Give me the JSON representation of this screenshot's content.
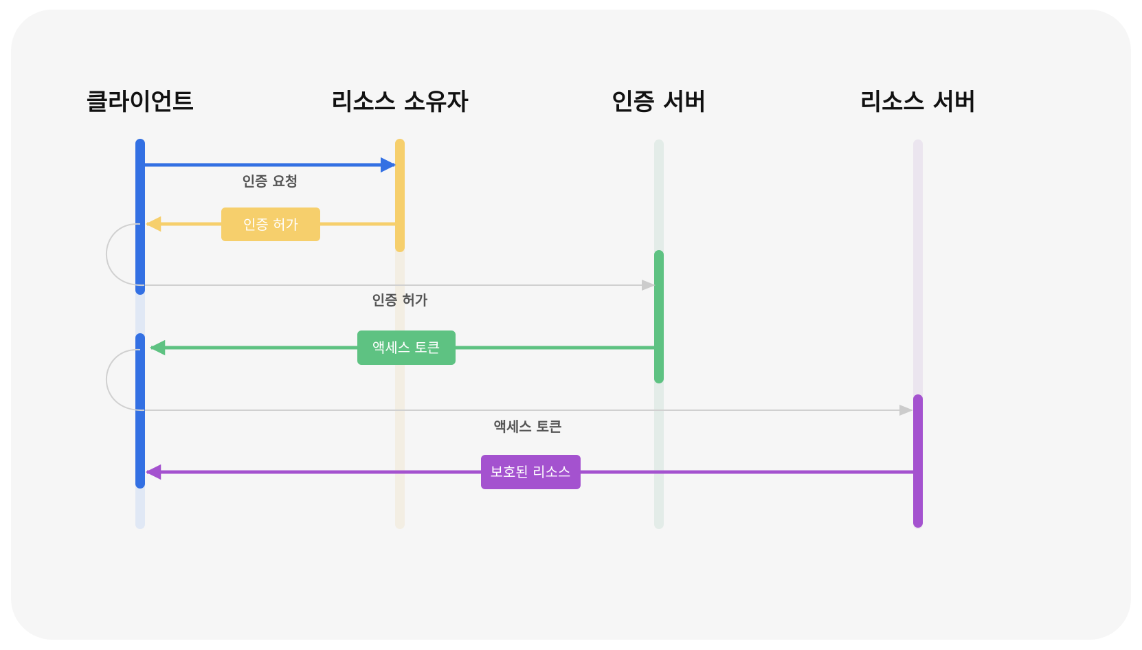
{
  "actors": [
    {
      "name": "클라이언트",
      "color": "#3370e3",
      "faint": "#e0e8f5"
    },
    {
      "name": "리소스 소유자",
      "color": "#f6cf6c",
      "faint": "#f3eee3"
    },
    {
      "name": "인증 서버",
      "color": "#5ec282",
      "faint": "#e3ece8"
    },
    {
      "name": "리소스 서버",
      "color": "#a452cf",
      "faint": "#ebe5ef"
    }
  ],
  "messages": [
    {
      "label": "인증 요청",
      "from": "클라이언트",
      "to": "리소스 소유자",
      "style": "plain-label",
      "color": "#3370e3"
    },
    {
      "label": "인증 허가",
      "from": "리소스 소유자",
      "to": "클라이언트",
      "style": "badge",
      "color": "#f6cf6c"
    },
    {
      "label": "인증 허가",
      "from": "클라이언트",
      "to": "인증 서버",
      "style": "plain-label",
      "color": "#cccccc"
    },
    {
      "label": "액세스 토큰",
      "from": "인증 서버",
      "to": "클라이언트",
      "style": "badge",
      "color": "#5ec282"
    },
    {
      "label": "액세스 토큰",
      "from": "클라이언트",
      "to": "리소스 서버",
      "style": "plain-label",
      "color": "#cccccc"
    },
    {
      "label": "보호된 리소스",
      "from": "리소스 서버",
      "to": "클라이언트",
      "style": "badge",
      "color": "#a452cf"
    }
  ]
}
